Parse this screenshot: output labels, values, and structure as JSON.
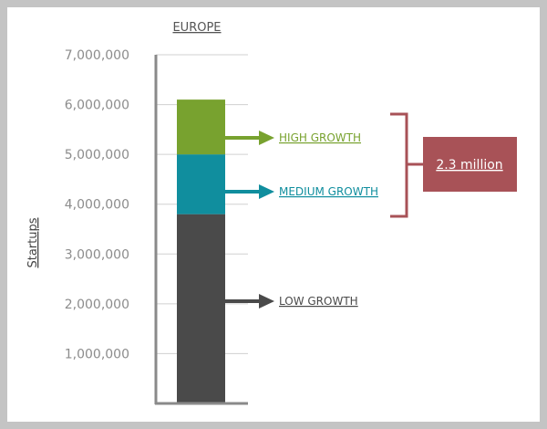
{
  "chart_data": {
    "type": "bar",
    "title": "EUROPE",
    "ylabel": "Startups",
    "xlabel": "",
    "ylim": [
      0,
      7000000
    ],
    "yticks": [
      1000000,
      2000000,
      3000000,
      4000000,
      5000000,
      6000000,
      7000000
    ],
    "ytick_labels": [
      "1,000,000",
      "2,000,000",
      "3,000,000",
      "4,000,000",
      "5,000,000",
      "6,000,000",
      "7,000,000"
    ],
    "grid": true,
    "categories": [
      "EUROPE"
    ],
    "series": [
      {
        "name": "LOW GROWTH",
        "values": [
          3800000
        ],
        "color": "#4a4a4a"
      },
      {
        "name": "MEDIUM GROWTH",
        "values": [
          1200000
        ],
        "color": "#108e9e"
      },
      {
        "name": "HIGH GROWTH",
        "values": [
          1100000
        ],
        "color": "#78a22f"
      }
    ],
    "annotations": [
      {
        "text": "2.3 million",
        "spans_series": [
          "MEDIUM GROWTH",
          "HIGH GROWTH"
        ],
        "color": "#a85257"
      }
    ]
  }
}
